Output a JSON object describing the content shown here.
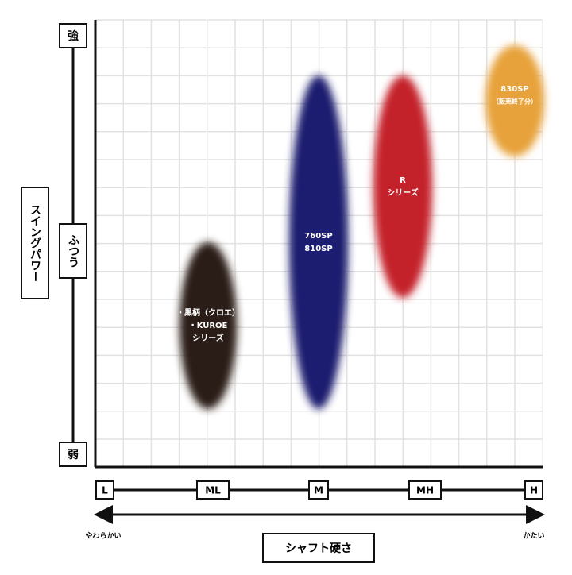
{
  "y_axis": {
    "title": "スイングパワー",
    "levels": [
      "強",
      "ふつう",
      "弱"
    ]
  },
  "x_axis": {
    "title": "シャフト硬さ",
    "levels": [
      "L",
      "ML",
      "M",
      "MH",
      "H"
    ],
    "soft": "やわらかい",
    "hard": "かたい"
  },
  "groups": [
    {
      "lines": [
        "・黒柄（クロエ）",
        "・KUROE",
        "シリーズ"
      ],
      "color": "#2b1a15"
    },
    {
      "lines": [
        "760SP",
        "810SP"
      ],
      "color": "#1c1a70"
    },
    {
      "lines": [
        "R",
        "シリーズ"
      ],
      "color": "#c4202c"
    },
    {
      "lines": [
        "830SP",
        "（販売終了分）"
      ],
      "color": "#e7a23a"
    }
  ]
}
